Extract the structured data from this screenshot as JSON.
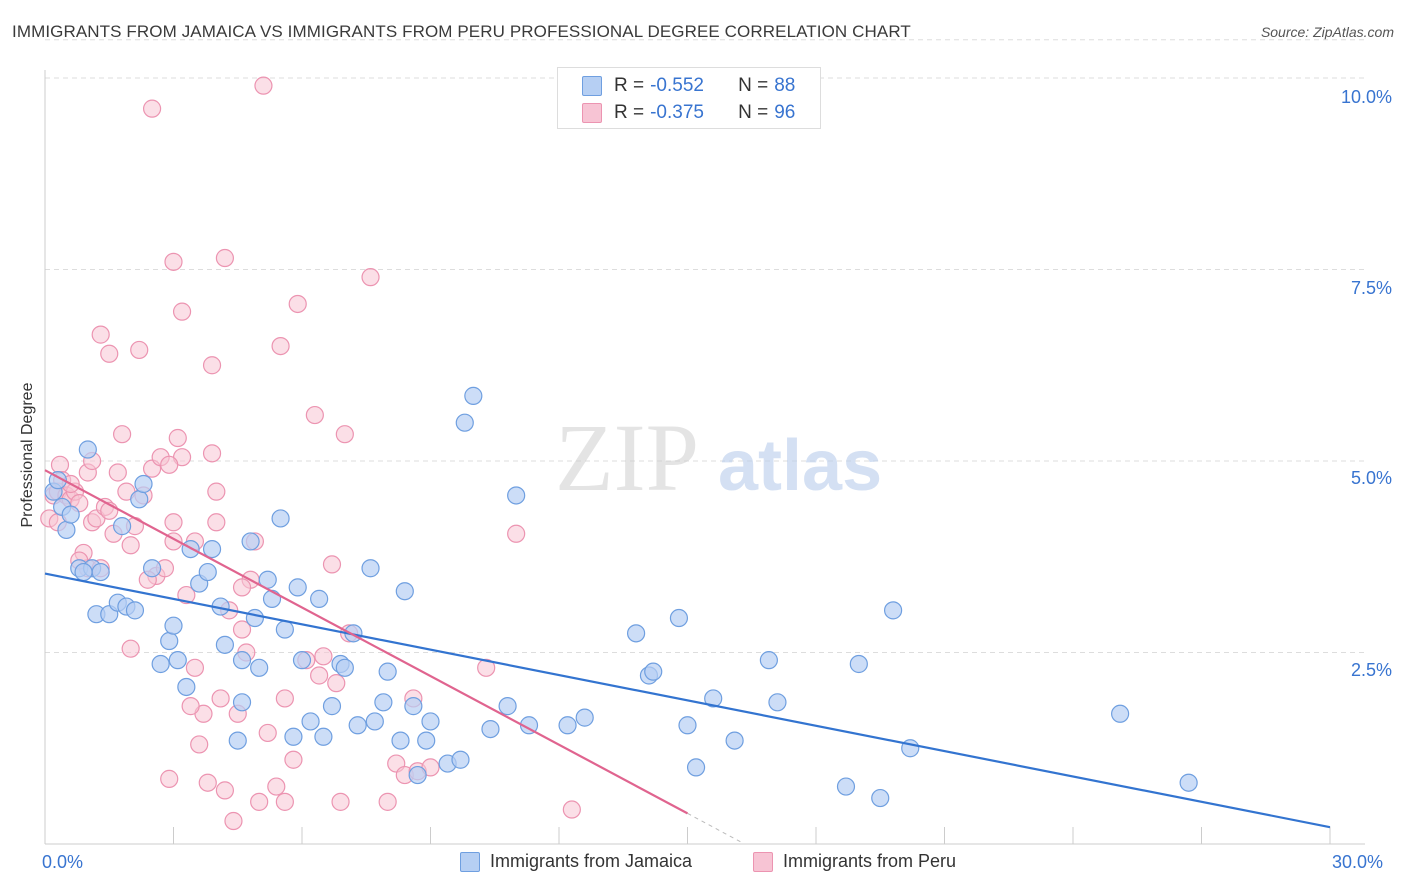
{
  "title": "IMMIGRANTS FROM JAMAICA VS IMMIGRANTS FROM PERU PROFESSIONAL DEGREE CORRELATION CHART",
  "source": "Source: ZipAtlas.com",
  "watermark": {
    "zip": "ZIP",
    "atlas": "atlas"
  },
  "legend": {
    "jamaica": {
      "r_label": "R =",
      "r_value": "-0.552",
      "n_label": "N =",
      "n_value": "88"
    },
    "peru": {
      "r_label": "R =",
      "r_value": "-0.375",
      "n_label": "N =",
      "n_value": "96"
    }
  },
  "bottom_legend": {
    "jamaica": "Immigrants from Jamaica",
    "peru": "Immigrants from Peru"
  },
  "colors": {
    "jamaica_fill": "#b6cff3",
    "jamaica_stroke": "#6f9fe0",
    "jamaica_line": "#3374d0",
    "peru_fill": "#f7c4d4",
    "peru_stroke": "#ec94b1",
    "peru_line": "#e0648f",
    "tick_text": "#3874d0",
    "grid": "#dddddd"
  },
  "chart_data": {
    "type": "scatter",
    "title": "IMMIGRANTS FROM JAMAICA VS IMMIGRANTS FROM PERU PROFESSIONAL DEGREE CORRELATION CHART",
    "xlabel": "",
    "ylabel": "Professional Degree",
    "xlim": [
      0,
      30
    ],
    "ylim": [
      0,
      10.5
    ],
    "x_tick_labels": [
      "0.0%",
      "30.0%"
    ],
    "y_ticks": [
      2.5,
      5.0,
      7.5,
      10.0
    ],
    "y_tick_labels": [
      "2.5%",
      "5.0%",
      "7.5%",
      "10.0%"
    ],
    "grid": true,
    "series": [
      {
        "name": "Immigrants from Jamaica",
        "trendline": {
          "x": [
            0,
            30
          ],
          "y": [
            3.53,
            0.22
          ]
        },
        "points": [
          [
            0.2,
            4.6
          ],
          [
            0.3,
            4.75
          ],
          [
            0.4,
            4.4
          ],
          [
            0.5,
            4.1
          ],
          [
            0.6,
            4.3
          ],
          [
            0.8,
            3.6
          ],
          [
            1.1,
            3.6
          ],
          [
            1.2,
            3.0
          ],
          [
            1.3,
            3.55
          ],
          [
            1.5,
            3.0
          ],
          [
            1.7,
            3.15
          ],
          [
            1.9,
            3.1
          ],
          [
            2.2,
            4.5
          ],
          [
            2.3,
            4.7
          ],
          [
            2.5,
            3.6
          ],
          [
            2.7,
            2.35
          ],
          [
            2.9,
            2.65
          ],
          [
            3.0,
            2.85
          ],
          [
            3.1,
            2.4
          ],
          [
            3.3,
            2.05
          ],
          [
            3.4,
            3.85
          ],
          [
            3.6,
            3.4
          ],
          [
            3.8,
            3.55
          ],
          [
            3.9,
            3.85
          ],
          [
            4.1,
            3.1
          ],
          [
            4.2,
            2.6
          ],
          [
            4.5,
            1.35
          ],
          [
            4.6,
            1.85
          ],
          [
            4.6,
            2.4
          ],
          [
            4.9,
            2.95
          ],
          [
            5.0,
            2.3
          ],
          [
            5.2,
            3.45
          ],
          [
            5.3,
            3.2
          ],
          [
            5.5,
            4.25
          ],
          [
            5.6,
            2.8
          ],
          [
            5.8,
            1.4
          ],
          [
            5.9,
            3.35
          ],
          [
            6.2,
            1.6
          ],
          [
            6.4,
            3.2
          ],
          [
            6.5,
            1.4
          ],
          [
            6.7,
            1.8
          ],
          [
            6.9,
            2.35
          ],
          [
            7.0,
            2.3
          ],
          [
            7.2,
            2.75
          ],
          [
            7.3,
            1.55
          ],
          [
            7.6,
            3.6
          ],
          [
            7.7,
            1.6
          ],
          [
            7.9,
            1.85
          ],
          [
            8.0,
            2.25
          ],
          [
            8.3,
            1.35
          ],
          [
            8.4,
            3.3
          ],
          [
            8.6,
            1.8
          ],
          [
            8.7,
            0.9
          ],
          [
            8.9,
            1.35
          ],
          [
            9.0,
            1.6
          ],
          [
            9.4,
            1.05
          ],
          [
            9.7,
            1.1
          ],
          [
            9.8,
            5.5
          ],
          [
            10.0,
            5.85
          ],
          [
            10.4,
            1.5
          ],
          [
            10.8,
            1.8
          ],
          [
            11.0,
            4.55
          ],
          [
            11.3,
            1.55
          ],
          [
            12.2,
            1.55
          ],
          [
            12.6,
            1.65
          ],
          [
            13.8,
            2.75
          ],
          [
            14.1,
            2.2
          ],
          [
            14.2,
            2.25
          ],
          [
            14.8,
            2.95
          ],
          [
            15.0,
            1.55
          ],
          [
            15.2,
            1.0
          ],
          [
            15.6,
            1.9
          ],
          [
            16.1,
            1.35
          ],
          [
            16.9,
            2.4
          ],
          [
            17.1,
            1.85
          ],
          [
            18.7,
            0.75
          ],
          [
            19.0,
            2.35
          ],
          [
            19.5,
            0.6
          ],
          [
            19.8,
            3.05
          ],
          [
            20.2,
            1.25
          ],
          [
            25.1,
            1.7
          ],
          [
            26.7,
            0.8
          ],
          [
            2.1,
            3.05
          ],
          [
            0.9,
            3.55
          ],
          [
            1.0,
            5.15
          ],
          [
            1.8,
            4.15
          ],
          [
            4.8,
            3.95
          ],
          [
            6.0,
            2.4
          ]
        ]
      },
      {
        "name": "Immigrants from Peru",
        "trendline": {
          "x": [
            0,
            15
          ],
          "y": [
            4.88,
            0.4
          ]
        },
        "trendline_dashed": {
          "x": [
            15,
            16.3
          ],
          "y": [
            0.4,
            0.01
          ]
        },
        "points": [
          [
            0.1,
            4.25
          ],
          [
            0.2,
            4.55
          ],
          [
            0.3,
            4.6
          ],
          [
            0.35,
            4.95
          ],
          [
            0.4,
            4.75
          ],
          [
            0.5,
            4.55
          ],
          [
            0.6,
            4.5
          ],
          [
            0.7,
            4.6
          ],
          [
            0.8,
            4.45
          ],
          [
            0.9,
            3.8
          ],
          [
            1.0,
            3.6
          ],
          [
            1.0,
            4.85
          ],
          [
            1.1,
            4.2
          ],
          [
            1.2,
            4.25
          ],
          [
            1.3,
            3.6
          ],
          [
            1.4,
            4.4
          ],
          [
            1.5,
            4.35
          ],
          [
            1.6,
            4.05
          ],
          [
            1.7,
            4.85
          ],
          [
            1.8,
            5.35
          ],
          [
            1.9,
            4.6
          ],
          [
            2.0,
            3.9
          ],
          [
            2.1,
            4.15
          ],
          [
            2.2,
            6.45
          ],
          [
            2.3,
            4.55
          ],
          [
            2.5,
            4.9
          ],
          [
            2.6,
            3.5
          ],
          [
            2.7,
            5.05
          ],
          [
            2.8,
            3.6
          ],
          [
            2.9,
            0.85
          ],
          [
            3.0,
            3.95
          ],
          [
            3.0,
            4.2
          ],
          [
            3.1,
            5.3
          ],
          [
            3.2,
            6.95
          ],
          [
            3.3,
            3.25
          ],
          [
            3.5,
            2.3
          ],
          [
            3.6,
            1.3
          ],
          [
            3.7,
            1.7
          ],
          [
            3.8,
            0.8
          ],
          [
            3.9,
            6.25
          ],
          [
            4.0,
            4.2
          ],
          [
            4.1,
            1.9
          ],
          [
            4.2,
            0.7
          ],
          [
            4.3,
            3.05
          ],
          [
            4.4,
            0.3
          ],
          [
            4.5,
            1.7
          ],
          [
            4.6,
            2.8
          ],
          [
            4.7,
            2.5
          ],
          [
            4.8,
            3.45
          ],
          [
            4.9,
            3.95
          ],
          [
            5.0,
            0.55
          ],
          [
            5.2,
            1.45
          ],
          [
            5.4,
            0.75
          ],
          [
            5.5,
            6.5
          ],
          [
            5.6,
            0.55
          ],
          [
            5.8,
            1.1
          ],
          [
            5.9,
            7.05
          ],
          [
            6.1,
            2.4
          ],
          [
            6.3,
            5.6
          ],
          [
            6.5,
            2.45
          ],
          [
            6.7,
            3.65
          ],
          [
            6.8,
            2.1
          ],
          [
            6.9,
            0.55
          ],
          [
            7.0,
            5.35
          ],
          [
            7.1,
            2.75
          ],
          [
            7.6,
            7.4
          ],
          [
            8.0,
            0.55
          ],
          [
            8.2,
            1.05
          ],
          [
            8.4,
            0.9
          ],
          [
            8.6,
            1.9
          ],
          [
            8.7,
            0.95
          ],
          [
            9.0,
            1.0
          ],
          [
            10.3,
            2.3
          ],
          [
            11.0,
            4.05
          ],
          [
            12.3,
            0.45
          ],
          [
            1.3,
            6.65
          ],
          [
            3.0,
            7.6
          ],
          [
            4.2,
            7.65
          ],
          [
            5.1,
            9.9
          ],
          [
            2.5,
            9.6
          ],
          [
            1.5,
            6.4
          ],
          [
            3.2,
            5.05
          ],
          [
            3.5,
            3.95
          ],
          [
            3.9,
            5.1
          ],
          [
            4.6,
            3.35
          ],
          [
            2.4,
            3.45
          ],
          [
            2.9,
            4.95
          ],
          [
            0.6,
            4.7
          ],
          [
            1.1,
            5.0
          ],
          [
            0.3,
            4.2
          ],
          [
            0.8,
            3.7
          ],
          [
            2.0,
            2.55
          ],
          [
            3.4,
            1.8
          ],
          [
            4.0,
            4.6
          ],
          [
            5.6,
            1.9
          ],
          [
            6.4,
            2.2
          ]
        ]
      }
    ]
  }
}
